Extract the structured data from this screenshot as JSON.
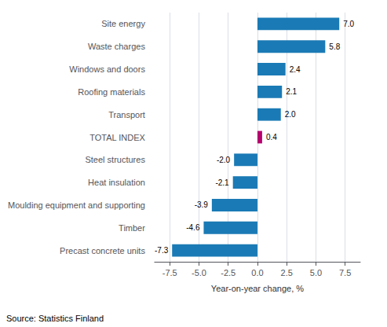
{
  "chart_data": {
    "type": "bar",
    "orientation": "horizontal",
    "categories": [
      "Precast concrete units",
      "Timber",
      "Moulding equipment and supporting",
      "Heat insulation",
      "Steel structures",
      "TOTAL INDEX",
      "Transport",
      "Roofing materials",
      "Windows and doors",
      "Waste charges",
      "Site energy"
    ],
    "values": [
      -7.3,
      -4.6,
      -3.9,
      -2.1,
      -2.0,
      0.4,
      2.0,
      2.1,
      2.4,
      5.8,
      7.0
    ],
    "value_labels": [
      "-7.3",
      "-4.6",
      "-3.9",
      "-2.1",
      "-2.0",
      "0.4",
      "2.0",
      "2.1",
      "2.4",
      "5.8",
      "7.0"
    ],
    "colors": [
      "#1a7ab5",
      "#1a7ab5",
      "#1a7ab5",
      "#1a7ab5",
      "#1a7ab5",
      "#b5006e",
      "#1a7ab5",
      "#1a7ab5",
      "#1a7ab5",
      "#1a7ab5",
      "#1a7ab5"
    ],
    "xlabel": "Year-on-year change, %",
    "xlim": [
      -8.8,
      8.8
    ],
    "xticks": [
      -7.5,
      {
        "value": -5,
        "label": "-5.0"
      },
      -2.5,
      {
        "value": 0,
        "label": "0.0"
      },
      2.5,
      {
        "value": 5,
        "label": "5.0"
      },
      7.5
    ],
    "grid": true,
    "data_labels": true,
    "annotations": [
      "Source: Statistics Finland"
    ]
  }
}
